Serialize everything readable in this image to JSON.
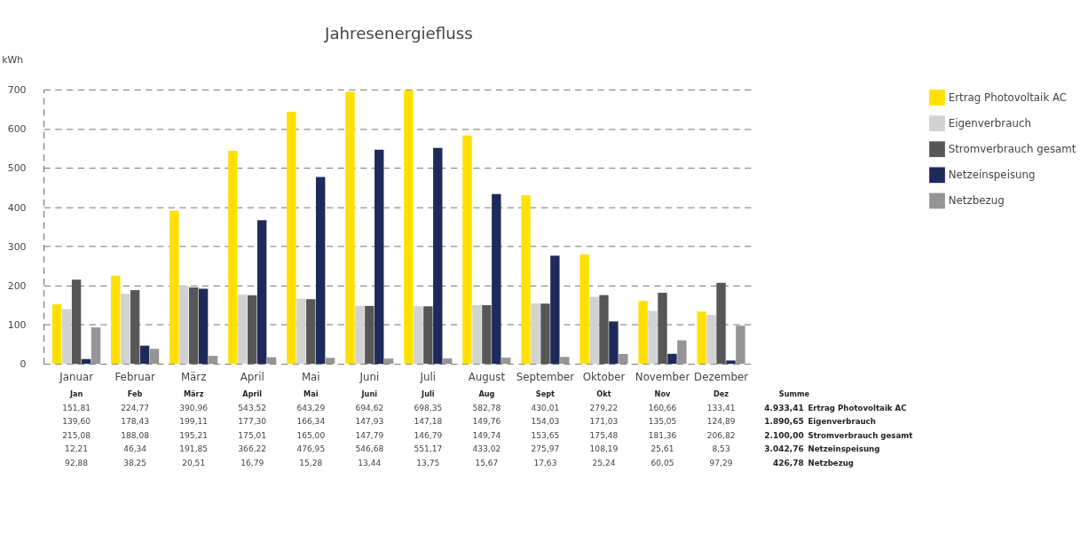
{
  "chart_data": {
    "type": "bar",
    "title": "Jahresenergiefluss",
    "ylabel": "kWh",
    "categories": [
      "Januar",
      "Februar",
      "März",
      "April",
      "Mai",
      "Juni",
      "Juli",
      "August",
      "September",
      "Oktober",
      "November",
      "Dezember"
    ],
    "series": [
      {
        "name": "Ertrag Photovoltaik AC",
        "color": "#ffe000",
        "values": [
          151.81,
          224.77,
          390.96,
          543.52,
          643.29,
          694.62,
          698.35,
          582.78,
          430.01,
          279.22,
          160.66,
          133.41
        ],
        "value_labels": [
          "151,81",
          "224,77",
          "390,96",
          "543,52",
          "643,29",
          "694,62",
          "698,35",
          "582,78",
          "430,01",
          "279,22",
          "160,66",
          "133,41"
        ]
      },
      {
        "name": "Eigenverbrauch",
        "color": "#d2d2d2",
        "values": [
          139.6,
          178.43,
          199.11,
          177.3,
          166.34,
          147.93,
          147.18,
          149.76,
          154.03,
          171.03,
          135.05,
          124.89
        ],
        "value_labels": [
          "139,60",
          "178,43",
          "199,11",
          "177,30",
          "166,34",
          "147,93",
          "147,18",
          "149,76",
          "154,03",
          "171,03",
          "135,05",
          "124,89"
        ]
      },
      {
        "name": "Stromverbrauch gesamt",
        "color": "#575757",
        "values": [
          215.08,
          188.08,
          195.21,
          175.01,
          165.0,
          147.79,
          146.79,
          149.74,
          153.65,
          175.48,
          181.36,
          206.82
        ],
        "value_labels": [
          "215,08",
          "188,08",
          "195,21",
          "175,01",
          "165,00",
          "147,79",
          "146,79",
          "149,74",
          "153,65",
          "175,48",
          "181,36",
          "206,82"
        ]
      },
      {
        "name": "Netzeinspeisung",
        "color": "#1e2a5a",
        "values": [
          12.21,
          46.34,
          191.85,
          366.22,
          476.95,
          546.68,
          551.17,
          433.02,
          275.97,
          108.19,
          25.61,
          8.53
        ],
        "value_labels": [
          "12,21",
          "46,34",
          "191,85",
          "366,22",
          "476,95",
          "546,68",
          "551,17",
          "433,02",
          "275,97",
          "108,19",
          "25,61",
          "8,53"
        ]
      },
      {
        "name": "Netzbezug",
        "color": "#959595",
        "values": [
          92.88,
          38.25,
          20.51,
          16.79,
          15.28,
          13.44,
          13.75,
          15.67,
          17.63,
          25.24,
          60.05,
          97.29
        ],
        "value_labels": [
          "92,88",
          "38,25",
          "20,51",
          "16,79",
          "15,28",
          "13,44",
          "13,75",
          "15,67",
          "17,63",
          "25,24",
          "60,05",
          "97,29"
        ]
      }
    ],
    "annotations": [
      "Jan",
      "Feb",
      "März",
      "April",
      "Mai",
      "Juni",
      "Juli",
      "Aug",
      "Sept",
      "Okt",
      "Nov",
      "Dez",
      "Summe",
      "4.933,41",
      "1.890,65",
      "2.100,00",
      "3.042,76",
      "426,78"
    ],
    "ylim": [
      0,
      700
    ],
    "yticks": [
      0,
      100,
      200,
      300,
      400,
      500,
      600,
      700
    ],
    "grid": "y",
    "legend": "right"
  }
}
